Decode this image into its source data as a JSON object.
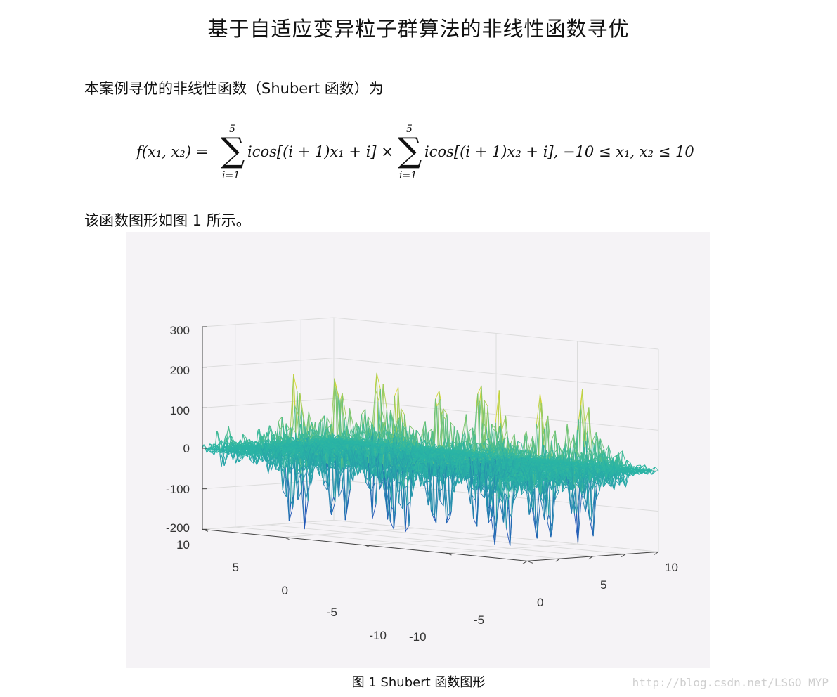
{
  "document": {
    "title": "基于自适应变异粒子群算法的非线性函数寻优",
    "intro": "本案例寻优的非线性函数（Shubert 函数）为",
    "formula": {
      "lhs": "f(x₁, x₂) = ",
      "sum1_upper": "5",
      "sum1_lower": "i=1",
      "term1": "icos[(i + 1)x₁ + i] ×",
      "sum2_upper": "5",
      "sum2_lower": "i=1",
      "term2": "icos[(i + 1)x₂ + i], −10 ≤ x₁, x₂ ≤ 10"
    },
    "figure_ref": "该函数图形如图 1 所示。",
    "caption": "图 1 Shubert 函数图形",
    "watermark": "http://blog.csdn.net/LSGO_MYP"
  },
  "plot": {
    "type": "surface",
    "z_ticks": [
      "300",
      "200",
      "100",
      "0",
      "-100",
      "-200"
    ],
    "left_ticks": [
      "10",
      "5",
      "0",
      "-5",
      "-10"
    ],
    "right_ticks": [
      "-10",
      "-5",
      "0",
      "5",
      "10"
    ],
    "colors": {
      "low": "#1f4fb8",
      "mid": "#2ab5a5",
      "high": "#f5dd22",
      "grid": "#dcdcdc"
    }
  }
}
